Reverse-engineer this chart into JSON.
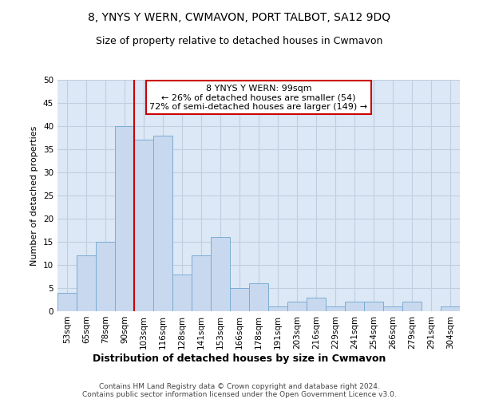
{
  "title1": "8, YNYS Y WERN, CWMAVON, PORT TALBOT, SA12 9DQ",
  "title2": "Size of property relative to detached houses in Cwmavon",
  "xlabel": "Distribution of detached houses by size in Cwmavon",
  "ylabel": "Number of detached properties",
  "categories": [
    "53sqm",
    "65sqm",
    "78sqm",
    "90sqm",
    "103sqm",
    "116sqm",
    "128sqm",
    "141sqm",
    "153sqm",
    "166sqm",
    "178sqm",
    "191sqm",
    "203sqm",
    "216sqm",
    "229sqm",
    "241sqm",
    "254sqm",
    "266sqm",
    "279sqm",
    "291sqm",
    "304sqm"
  ],
  "values": [
    4,
    12,
    15,
    40,
    37,
    38,
    8,
    12,
    16,
    5,
    6,
    1,
    2,
    3,
    1,
    2,
    2,
    1,
    2,
    0,
    1
  ],
  "bar_color": "#c8d8ee",
  "bar_edge_color": "#7aadd4",
  "annotation_text_line1": "8 YNYS Y WERN: 99sqm",
  "annotation_text_line2": "← 26% of detached houses are smaller (54)",
  "annotation_text_line3": "72% of semi-detached houses are larger (149) →",
  "annotation_box_color": "#ffffff",
  "annotation_box_edge_color": "#cc0000",
  "vline_color": "#cc0000",
  "vline_x_index": 4,
  "ylim": [
    0,
    50
  ],
  "yticks": [
    0,
    5,
    10,
    15,
    20,
    25,
    30,
    35,
    40,
    45,
    50
  ],
  "grid_color": "#c0cedf",
  "bg_color": "#dce8f5",
  "footer_line1": "Contains HM Land Registry data © Crown copyright and database right 2024.",
  "footer_line2": "Contains public sector information licensed under the Open Government Licence v3.0.",
  "title1_fontsize": 10,
  "title2_fontsize": 9,
  "xlabel_fontsize": 9,
  "ylabel_fontsize": 8,
  "tick_fontsize": 7.5,
  "annotation_fontsize": 8,
  "footer_fontsize": 6.5
}
